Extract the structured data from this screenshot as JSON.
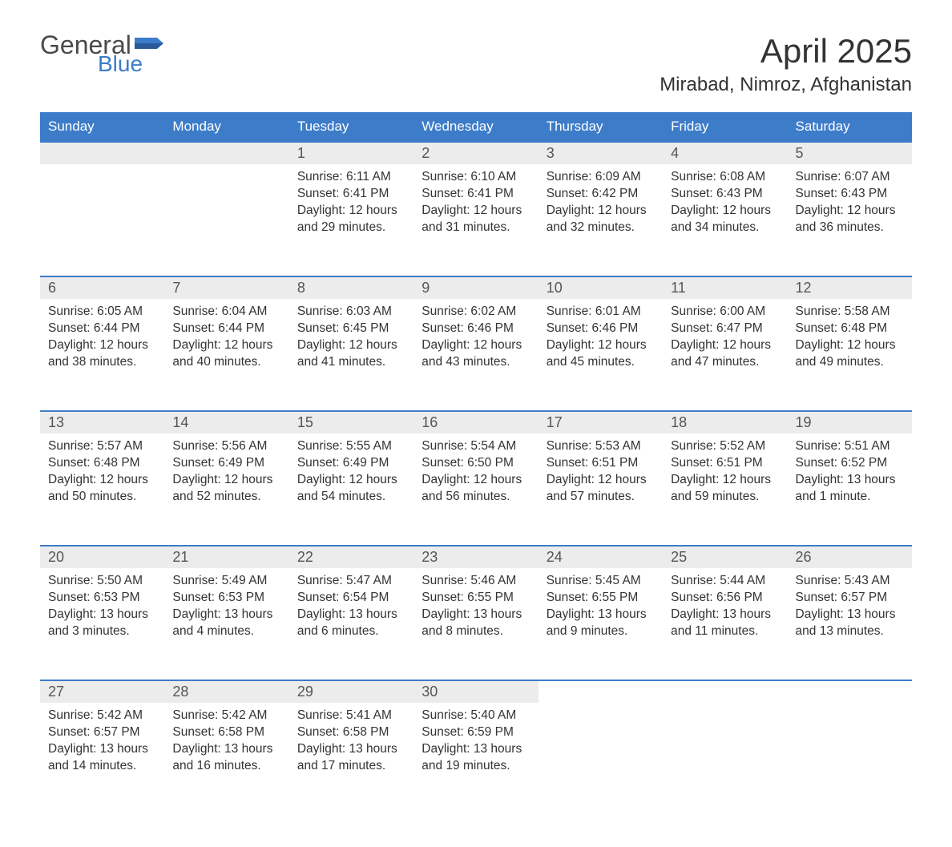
{
  "brand": {
    "word1": "General",
    "word2": "Blue"
  },
  "title": "April 2025",
  "location": "Mirabad, Nimroz, Afghanistan",
  "colors": {
    "header_bg": "#3d7cc9",
    "header_text": "#ffffff",
    "daynum_bg": "#ececec",
    "daynum_border": "#3d7cc9",
    "body_text": "#333333",
    "page_bg": "#ffffff",
    "logo_gray": "#4a4a4a",
    "logo_blue": "#3d7cc9"
  },
  "fonts": {
    "title_pt": 42,
    "location_pt": 24,
    "th_pt": 17,
    "daynum_pt": 18,
    "body_pt": 15.5
  },
  "weekdays": [
    "Sunday",
    "Monday",
    "Tuesday",
    "Wednesday",
    "Thursday",
    "Friday",
    "Saturday"
  ],
  "weeks": [
    [
      null,
      null,
      {
        "n": "1",
        "sunrise": "6:11 AM",
        "sunset": "6:41 PM",
        "daylight": "12 hours and 29 minutes."
      },
      {
        "n": "2",
        "sunrise": "6:10 AM",
        "sunset": "6:41 PM",
        "daylight": "12 hours and 31 minutes."
      },
      {
        "n": "3",
        "sunrise": "6:09 AM",
        "sunset": "6:42 PM",
        "daylight": "12 hours and 32 minutes."
      },
      {
        "n": "4",
        "sunrise": "6:08 AM",
        "sunset": "6:43 PM",
        "daylight": "12 hours and 34 minutes."
      },
      {
        "n": "5",
        "sunrise": "6:07 AM",
        "sunset": "6:43 PM",
        "daylight": "12 hours and 36 minutes."
      }
    ],
    [
      {
        "n": "6",
        "sunrise": "6:05 AM",
        "sunset": "6:44 PM",
        "daylight": "12 hours and 38 minutes."
      },
      {
        "n": "7",
        "sunrise": "6:04 AM",
        "sunset": "6:44 PM",
        "daylight": "12 hours and 40 minutes."
      },
      {
        "n": "8",
        "sunrise": "6:03 AM",
        "sunset": "6:45 PM",
        "daylight": "12 hours and 41 minutes."
      },
      {
        "n": "9",
        "sunrise": "6:02 AM",
        "sunset": "6:46 PM",
        "daylight": "12 hours and 43 minutes."
      },
      {
        "n": "10",
        "sunrise": "6:01 AM",
        "sunset": "6:46 PM",
        "daylight": "12 hours and 45 minutes."
      },
      {
        "n": "11",
        "sunrise": "6:00 AM",
        "sunset": "6:47 PM",
        "daylight": "12 hours and 47 minutes."
      },
      {
        "n": "12",
        "sunrise": "5:58 AM",
        "sunset": "6:48 PM",
        "daylight": "12 hours and 49 minutes."
      }
    ],
    [
      {
        "n": "13",
        "sunrise": "5:57 AM",
        "sunset": "6:48 PM",
        "daylight": "12 hours and 50 minutes."
      },
      {
        "n": "14",
        "sunrise": "5:56 AM",
        "sunset": "6:49 PM",
        "daylight": "12 hours and 52 minutes."
      },
      {
        "n": "15",
        "sunrise": "5:55 AM",
        "sunset": "6:49 PM",
        "daylight": "12 hours and 54 minutes."
      },
      {
        "n": "16",
        "sunrise": "5:54 AM",
        "sunset": "6:50 PM",
        "daylight": "12 hours and 56 minutes."
      },
      {
        "n": "17",
        "sunrise": "5:53 AM",
        "sunset": "6:51 PM",
        "daylight": "12 hours and 57 minutes."
      },
      {
        "n": "18",
        "sunrise": "5:52 AM",
        "sunset": "6:51 PM",
        "daylight": "12 hours and 59 minutes."
      },
      {
        "n": "19",
        "sunrise": "5:51 AM",
        "sunset": "6:52 PM",
        "daylight": "13 hours and 1 minute."
      }
    ],
    [
      {
        "n": "20",
        "sunrise": "5:50 AM",
        "sunset": "6:53 PM",
        "daylight": "13 hours and 3 minutes."
      },
      {
        "n": "21",
        "sunrise": "5:49 AM",
        "sunset": "6:53 PM",
        "daylight": "13 hours and 4 minutes."
      },
      {
        "n": "22",
        "sunrise": "5:47 AM",
        "sunset": "6:54 PM",
        "daylight": "13 hours and 6 minutes."
      },
      {
        "n": "23",
        "sunrise": "5:46 AM",
        "sunset": "6:55 PM",
        "daylight": "13 hours and 8 minutes."
      },
      {
        "n": "24",
        "sunrise": "5:45 AM",
        "sunset": "6:55 PM",
        "daylight": "13 hours and 9 minutes."
      },
      {
        "n": "25",
        "sunrise": "5:44 AM",
        "sunset": "6:56 PM",
        "daylight": "13 hours and 11 minutes."
      },
      {
        "n": "26",
        "sunrise": "5:43 AM",
        "sunset": "6:57 PM",
        "daylight": "13 hours and 13 minutes."
      }
    ],
    [
      {
        "n": "27",
        "sunrise": "5:42 AM",
        "sunset": "6:57 PM",
        "daylight": "13 hours and 14 minutes."
      },
      {
        "n": "28",
        "sunrise": "5:42 AM",
        "sunset": "6:58 PM",
        "daylight": "13 hours and 16 minutes."
      },
      {
        "n": "29",
        "sunrise": "5:41 AM",
        "sunset": "6:58 PM",
        "daylight": "13 hours and 17 minutes."
      },
      {
        "n": "30",
        "sunrise": "5:40 AM",
        "sunset": "6:59 PM",
        "daylight": "13 hours and 19 minutes."
      },
      null,
      null,
      null
    ]
  ],
  "labels": {
    "sunrise": "Sunrise: ",
    "sunset": "Sunset: ",
    "daylight": "Daylight: "
  }
}
